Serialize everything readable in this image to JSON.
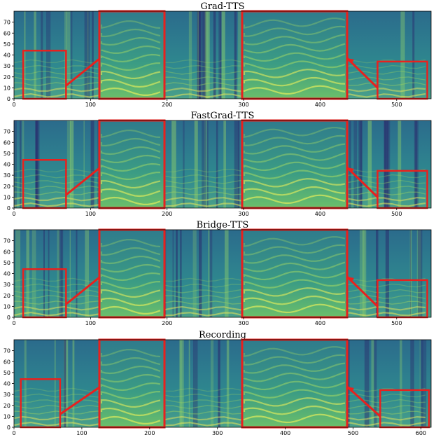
{
  "chart_data": [
    {
      "type": "heatmap",
      "title": "Grad-TTS",
      "xlim": [
        0,
        545
      ],
      "ylim": [
        0,
        80
      ],
      "xticks": [
        0,
        100,
        200,
        300,
        400,
        500
      ],
      "yticks": [
        0,
        10,
        20,
        30,
        40,
        50,
        60,
        70
      ],
      "colormap": "viridis",
      "zoom_source": {
        "x": [
          12,
          68
        ],
        "y": [
          0,
          44
        ]
      },
      "zoom_target": {
        "x": [
          475,
          540
        ],
        "y": [
          0,
          34
        ]
      }
    },
    {
      "type": "heatmap",
      "title": "FastGrad-TTS",
      "xlim": [
        0,
        545
      ],
      "ylim": [
        0,
        80
      ],
      "xticks": [
        0,
        100,
        200,
        300,
        400,
        500
      ],
      "yticks": [
        0,
        10,
        20,
        30,
        40,
        50,
        60,
        70
      ],
      "colormap": "viridis",
      "zoom_source": {
        "x": [
          12,
          68
        ],
        "y": [
          0,
          44
        ]
      },
      "zoom_target": {
        "x": [
          475,
          540
        ],
        "y": [
          0,
          34
        ]
      }
    },
    {
      "type": "heatmap",
      "title": "Bridge-TTS",
      "xlim": [
        0,
        545
      ],
      "ylim": [
        0,
        80
      ],
      "xticks": [
        0,
        100,
        200,
        300,
        400,
        500
      ],
      "yticks": [
        0,
        10,
        20,
        30,
        40,
        50,
        60,
        70
      ],
      "colormap": "viridis",
      "zoom_source": {
        "x": [
          12,
          68
        ],
        "y": [
          0,
          44
        ]
      },
      "zoom_target": {
        "x": [
          475,
          540
        ],
        "y": [
          0,
          34
        ]
      }
    },
    {
      "type": "heatmap",
      "title": "Recording",
      "xlim": [
        0,
        615
      ],
      "ylim": [
        0,
        80
      ],
      "xticks": [
        0,
        100,
        200,
        300,
        400,
        500,
        600
      ],
      "yticks": [
        0,
        10,
        20,
        30,
        40,
        50,
        60,
        70
      ],
      "colormap": "viridis",
      "zoom_source": {
        "x": [
          10,
          68
        ],
        "y": [
          0,
          44
        ]
      },
      "zoom_target": {
        "x": [
          540,
          612
        ],
        "y": [
          0,
          34
        ]
      }
    }
  ],
  "style": {
    "highlight_color": "#e8211e",
    "background_color": "#3a7f8c"
  }
}
